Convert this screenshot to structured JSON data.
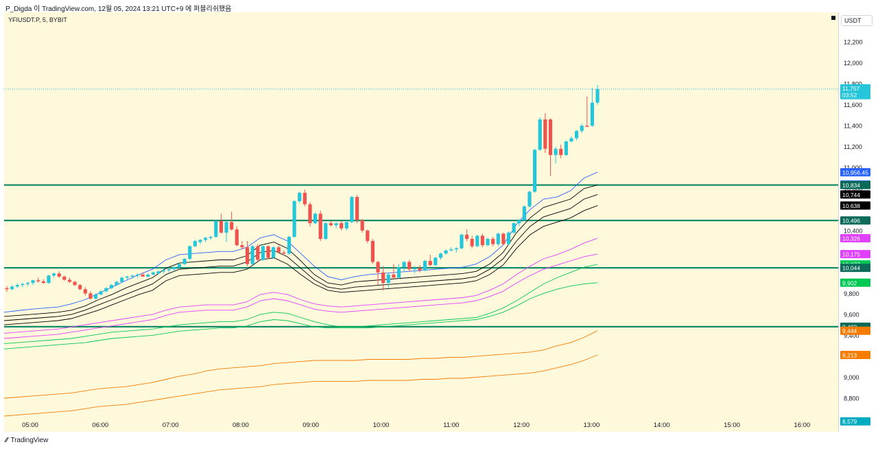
{
  "header": {
    "publisher_text": "P_Digda 이 TradingView.com, 12월 05, 2024 13:21 UTC+9 에 퍼블리쉬됐음"
  },
  "symbol_label": "YFIUSDT.P, 5, BYBIT",
  "currency_label": "USDT",
  "brand": {
    "icon": "tradingview-logo-icon",
    "text": "TradingView"
  },
  "colors": {
    "background": "#fff9dc",
    "up": "#26c6da",
    "down": "#ef5350",
    "hline": "#138a6a"
  },
  "chart_data": {
    "type": "candlestick",
    "y_axis": {
      "ticks": [
        "12,200",
        "12,000",
        "11,800",
        "11,600",
        "11,400",
        "11,200",
        "11,000",
        "10,800",
        "10,400",
        "9,800",
        "9,600",
        "9,400",
        "9,000",
        "8,800"
      ],
      "range": [
        8500,
        12450
      ]
    },
    "x_axis": {
      "ticks": [
        "05:00",
        "06:00",
        "07:00",
        "08:00",
        "09:00",
        "10:00",
        "11:00",
        "12:00",
        "13:00",
        "14:00",
        "15:00",
        "16:00"
      ]
    },
    "current_price": {
      "value": "11,757",
      "countdown": "03:52",
      "color": "#26c6da"
    },
    "price_labels": [
      {
        "text": "10,956.45",
        "value": 10956.45,
        "color": "#2962ff"
      },
      {
        "text": "10,839.11",
        "value": 10839.11,
        "color": "#2962ff"
      },
      {
        "text": "10,834",
        "value": 10834,
        "color": "#0b6b58"
      },
      {
        "text": "10,744",
        "value": 10744,
        "color": "#000000"
      },
      {
        "text": "10,638",
        "value": 10638,
        "color": "#000000"
      },
      {
        "text": "10,496",
        "value": 10496,
        "color": "#0b6b58"
      },
      {
        "text": "10,326",
        "value": 10326,
        "color": "#e040fb"
      },
      {
        "text": "10,175",
        "value": 10175,
        "color": "#e040fb"
      },
      {
        "text": "10,077",
        "value": 10077,
        "color": "#00c853"
      },
      {
        "text": "10,044",
        "value": 10044,
        "color": "#0b6b58"
      },
      {
        "text": "9,902",
        "value": 9902,
        "color": "#00c853"
      },
      {
        "text": "9,482",
        "value": 9482,
        "color": "#0b6b58"
      },
      {
        "text": "9,444",
        "value": 9444,
        "color": "#f57c00"
      },
      {
        "text": "9,213",
        "value": 9213,
        "color": "#f57c00"
      },
      {
        "text": "8,579",
        "value": 8579,
        "color": "#00acc1"
      }
    ],
    "horizontal_lines": [
      10834,
      10496,
      10044,
      9482
    ],
    "candles": [
      [
        9850,
        9870,
        9815,
        9840
      ],
      [
        9840,
        9880,
        9830,
        9865
      ],
      [
        9865,
        9895,
        9850,
        9880
      ],
      [
        9880,
        9900,
        9860,
        9890
      ],
      [
        9890,
        9910,
        9870,
        9900
      ],
      [
        9900,
        9930,
        9880,
        9925
      ],
      [
        9925,
        9950,
        9900,
        9915
      ],
      [
        9915,
        9935,
        9890,
        9900
      ],
      [
        9900,
        9980,
        9890,
        9970
      ],
      [
        9970,
        10000,
        9950,
        9990
      ],
      [
        9990,
        10010,
        9950,
        9960
      ],
      [
        9960,
        9970,
        9920,
        9930
      ],
      [
        9930,
        9950,
        9900,
        9910
      ],
      [
        9910,
        9920,
        9870,
        9880
      ],
      [
        9880,
        9890,
        9830,
        9840
      ],
      [
        9840,
        9860,
        9780,
        9800
      ],
      [
        9800,
        9820,
        9740,
        9750
      ],
      [
        9750,
        9800,
        9740,
        9790
      ],
      [
        9790,
        9830,
        9780,
        9820
      ],
      [
        9820,
        9860,
        9810,
        9850
      ],
      [
        9850,
        9890,
        9840,
        9880
      ],
      [
        9880,
        9920,
        9870,
        9910
      ],
      [
        9910,
        9960,
        9900,
        9950
      ],
      [
        9950,
        9970,
        9930,
        9960
      ],
      [
        9960,
        9980,
        9940,
        9970
      ],
      [
        9970,
        9990,
        9950,
        9980
      ],
      [
        9980,
        10000,
        9960,
        9960
      ],
      [
        9960,
        9990,
        9950,
        9980
      ],
      [
        9980,
        10010,
        9970,
        10000
      ],
      [
        9990,
        10020,
        9980,
        10010
      ],
      [
        10010,
        10040,
        9990,
        10020
      ],
      [
        10020,
        10050,
        10000,
        10030
      ],
      [
        10030,
        10060,
        10010,
        10050
      ],
      [
        10050,
        10090,
        10040,
        10080
      ],
      [
        10080,
        10140,
        10070,
        10130
      ],
      [
        10130,
        10260,
        10120,
        10250
      ],
      [
        10250,
        10310,
        10240,
        10300
      ],
      [
        10290,
        10320,
        10270,
        10310
      ],
      [
        10310,
        10340,
        10290,
        10330
      ],
      [
        10330,
        10350,
        10310,
        10340
      ],
      [
        10340,
        10500,
        10330,
        10490
      ],
      [
        10490,
        10560,
        10370,
        10380
      ],
      [
        10380,
        10490,
        10290,
        10480
      ],
      [
        10480,
        10580,
        10400,
        10410
      ],
      [
        10410,
        10440,
        10250,
        10260
      ],
      [
        10260,
        10300,
        10220,
        10240
      ],
      [
        10240,
        10300,
        10060,
        10080
      ],
      [
        10080,
        10260,
        10070,
        10250
      ],
      [
        10250,
        10270,
        10110,
        10120
      ],
      [
        10120,
        10270,
        10110,
        10250
      ],
      [
        10250,
        10260,
        10130,
        10140
      ],
      [
        10140,
        10250,
        10130,
        10240
      ],
      [
        10240,
        10260,
        10180,
        10190
      ],
      [
        10190,
        10210,
        10160,
        10180
      ],
      [
        10180,
        10350,
        10170,
        10340
      ],
      [
        10340,
        10690,
        10330,
        10680
      ],
      [
        10680,
        10770,
        10660,
        10760
      ],
      [
        10760,
        10790,
        10630,
        10650
      ],
      [
        10650,
        10670,
        10440,
        10470
      ],
      [
        10470,
        10570,
        10460,
        10560
      ],
      [
        10560,
        10590,
        10300,
        10320
      ],
      [
        10320,
        10480,
        10310,
        10470
      ],
      [
        10470,
        10490,
        10440,
        10450
      ],
      [
        10450,
        10480,
        10420,
        10470
      ],
      [
        10470,
        10490,
        10400,
        10420
      ],
      [
        10420,
        10500,
        10400,
        10480
      ],
      [
        10480,
        10730,
        10470,
        10720
      ],
      [
        10720,
        10740,
        10470,
        10500
      ],
      [
        10500,
        10510,
        10380,
        10400
      ],
      [
        10400,
        10410,
        10280,
        10300
      ],
      [
        10300,
        10320,
        10080,
        10100
      ],
      [
        10100,
        10110,
        9880,
        10000
      ],
      [
        10000,
        10060,
        9830,
        9900
      ],
      [
        9900,
        10000,
        9850,
        9980
      ],
      [
        9980,
        10080,
        9950,
        9950
      ],
      [
        9950,
        10080,
        9940,
        10050
      ],
      [
        10050,
        10110,
        10010,
        10100
      ],
      [
        10100,
        10120,
        10010,
        10030
      ],
      [
        10030,
        10060,
        9990,
        10040
      ],
      [
        10040,
        10070,
        10000,
        10020
      ],
      [
        10020,
        10120,
        10010,
        10110
      ],
      [
        10110,
        10170,
        10060,
        10070
      ],
      [
        10070,
        10150,
        10060,
        10140
      ],
      [
        10140,
        10190,
        10120,
        10180
      ],
      [
        10180,
        10220,
        10170,
        10210
      ],
      [
        10210,
        10240,
        10200,
        10220
      ],
      [
        10220,
        10240,
        10190,
        10230
      ],
      [
        10230,
        10370,
        10220,
        10360
      ],
      [
        10360,
        10410,
        10300,
        10320
      ],
      [
        10320,
        10350,
        10230,
        10250
      ],
      [
        10250,
        10360,
        10240,
        10350
      ],
      [
        10350,
        10370,
        10240,
        10260
      ],
      [
        10260,
        10330,
        10250,
        10320
      ],
      [
        10320,
        10340,
        10250,
        10270
      ],
      [
        10270,
        10380,
        10250,
        10370
      ],
      [
        10370,
        10380,
        10260,
        10270
      ],
      [
        10270,
        10390,
        10260,
        10380
      ],
      [
        10380,
        10480,
        10370,
        10470
      ],
      [
        10470,
        10510,
        10440,
        10500
      ],
      [
        10500,
        10640,
        10490,
        10630
      ],
      [
        10630,
        10780,
        10620,
        10770
      ],
      [
        10770,
        11180,
        10760,
        11170
      ],
      [
        11170,
        11480,
        11160,
        11460
      ],
      [
        11460,
        11520,
        11140,
        11180
      ],
      [
        11460,
        11470,
        10920,
        11120
      ],
      [
        11120,
        11200,
        11040,
        11180
      ],
      [
        11180,
        11220,
        11090,
        11120
      ],
      [
        11120,
        11260,
        11110,
        11250
      ],
      [
        11250,
        11300,
        11240,
        11280
      ],
      [
        11280,
        11360,
        11260,
        11350
      ],
      [
        11350,
        11420,
        11330,
        11400
      ],
      [
        11400,
        11680,
        11390,
        11390
      ],
      [
        11400,
        11760,
        11390,
        11620
      ],
      [
        11620,
        11790,
        11600,
        11750
      ]
    ],
    "indicator_lines": [
      {
        "color": "#2962ff",
        "values": [
          9620,
          9635,
          9650,
          9660,
          9670,
          9700,
          9740,
          9800,
          9860,
          9920,
          9980,
          10030,
          10120,
          10170,
          10180,
          10190,
          10200,
          10200,
          10240,
          10330,
          10360,
          10300,
          10180,
          10060,
          9960,
          9930,
          9960,
          9980,
          9990,
          10000,
          10010,
          10020,
          10030,
          10040,
          10050,
          10080,
          10150,
          10260,
          10460,
          10600,
          10700,
          10720,
          10780,
          10900,
          10957
        ]
      },
      {
        "color": "#000000",
        "values": [
          9580,
          9590,
          9600,
          9610,
          9620,
          9640,
          9680,
          9740,
          9790,
          9850,
          9900,
          9950,
          10040,
          10090,
          10100,
          10110,
          10120,
          10120,
          10160,
          10260,
          10290,
          10230,
          10110,
          9980,
          9900,
          9880,
          9910,
          9920,
          9930,
          9940,
          9950,
          9960,
          9970,
          9980,
          9990,
          10010,
          10080,
          10190,
          10380,
          10520,
          10620,
          10660,
          10700,
          10800,
          10834
        ]
      },
      {
        "color": "#000000",
        "values": [
          9540,
          9550,
          9560,
          9570,
          9580,
          9600,
          9640,
          9690,
          9740,
          9790,
          9840,
          9890,
          9980,
          10030,
          10040,
          10050,
          10060,
          10060,
          10100,
          10190,
          10210,
          10150,
          10040,
          9930,
          9860,
          9840,
          9860,
          9870,
          9880,
          9890,
          9900,
          9910,
          9920,
          9930,
          9940,
          9960,
          10030,
          10130,
          10300,
          10440,
          10530,
          10570,
          10610,
          10700,
          10744
        ]
      },
      {
        "color": "#000000",
        "values": [
          9500,
          9510,
          9520,
          9530,
          9540,
          9560,
          9600,
          9640,
          9690,
          9740,
          9790,
          9830,
          9920,
          9970,
          9980,
          9990,
          10000,
          10000,
          10030,
          10120,
          10140,
          10080,
          9980,
          9890,
          9830,
          9810,
          9820,
          9830,
          9840,
          9850,
          9860,
          9870,
          9880,
          9890,
          9900,
          9920,
          9980,
          10070,
          10230,
          10360,
          10440,
          10480,
          10520,
          10590,
          10638
        ]
      },
      {
        "color": "#e040fb",
        "values": [
          9420,
          9430,
          9440,
          9450,
          9460,
          9480,
          9500,
          9520,
          9540,
          9560,
          9580,
          9600,
          9640,
          9670,
          9680,
          9690,
          9690,
          9690,
          9720,
          9790,
          9810,
          9790,
          9740,
          9700,
          9680,
          9670,
          9680,
          9690,
          9700,
          9710,
          9720,
          9730,
          9740,
          9750,
          9760,
          9780,
          9830,
          9890,
          9980,
          10060,
          10130,
          10170,
          10220,
          10280,
          10326
        ]
      },
      {
        "color": "#e040fb",
        "values": [
          9370,
          9380,
          9390,
          9400,
          9410,
          9430,
          9450,
          9470,
          9490,
          9510,
          9530,
          9550,
          9590,
          9620,
          9630,
          9640,
          9640,
          9640,
          9670,
          9730,
          9750,
          9730,
          9690,
          9650,
          9630,
          9620,
          9630,
          9640,
          9650,
          9660,
          9670,
          9680,
          9690,
          9700,
          9710,
          9730,
          9770,
          9820,
          9900,
          9970,
          10030,
          10070,
          10110,
          10150,
          10175
        ]
      },
      {
        "color": "#00c853",
        "values": [
          9320,
          9330,
          9340,
          9350,
          9360,
          9370,
          9390,
          9410,
          9430,
          9440,
          9450,
          9460,
          9480,
          9500,
          9510,
          9520,
          9530,
          9530,
          9550,
          9600,
          9620,
          9610,
          9570,
          9530,
          9500,
          9480,
          9480,
          9490,
          9500,
          9510,
          9520,
          9530,
          9540,
          9550,
          9560,
          9570,
          9610,
          9660,
          9730,
          9810,
          9890,
          9950,
          10000,
          10050,
          10077
        ]
      },
      {
        "color": "#00c853",
        "values": [
          9270,
          9280,
          9290,
          9300,
          9310,
          9320,
          9330,
          9350,
          9370,
          9380,
          9390,
          9400,
          9420,
          9440,
          9450,
          9460,
          9470,
          9470,
          9490,
          9530,
          9550,
          9540,
          9510,
          9480,
          9470,
          9470,
          9470,
          9470,
          9480,
          9490,
          9500,
          9510,
          9520,
          9530,
          9540,
          9550,
          9580,
          9620,
          9680,
          9750,
          9800,
          9840,
          9870,
          9890,
          9902
        ]
      },
      {
        "color": "#f57c00",
        "values": [
          8800,
          8810,
          8820,
          8830,
          8840,
          8850,
          8870,
          8890,
          8900,
          8910,
          8930,
          8950,
          8980,
          9010,
          9030,
          9060,
          9080,
          9090,
          9100,
          9110,
          9130,
          9140,
          9150,
          9160,
          9160,
          9160,
          9160,
          9170,
          9170,
          9170,
          9170,
          9180,
          9180,
          9190,
          9190,
          9200,
          9210,
          9220,
          9230,
          9240,
          9260,
          9300,
          9330,
          9380,
          9444
        ]
      },
      {
        "color": "#f57c00",
        "values": [
          8630,
          8640,
          8650,
          8660,
          8670,
          8680,
          8700,
          8720,
          8730,
          8740,
          8760,
          8780,
          8800,
          8820,
          8840,
          8860,
          8880,
          8890,
          8900,
          8910,
          8930,
          8940,
          8950,
          8960,
          8960,
          8960,
          8960,
          8970,
          8970,
          8970,
          8970,
          8980,
          8980,
          8990,
          8990,
          9000,
          9010,
          9020,
          9030,
          9040,
          9060,
          9090,
          9120,
          9160,
          9213
        ]
      }
    ]
  }
}
